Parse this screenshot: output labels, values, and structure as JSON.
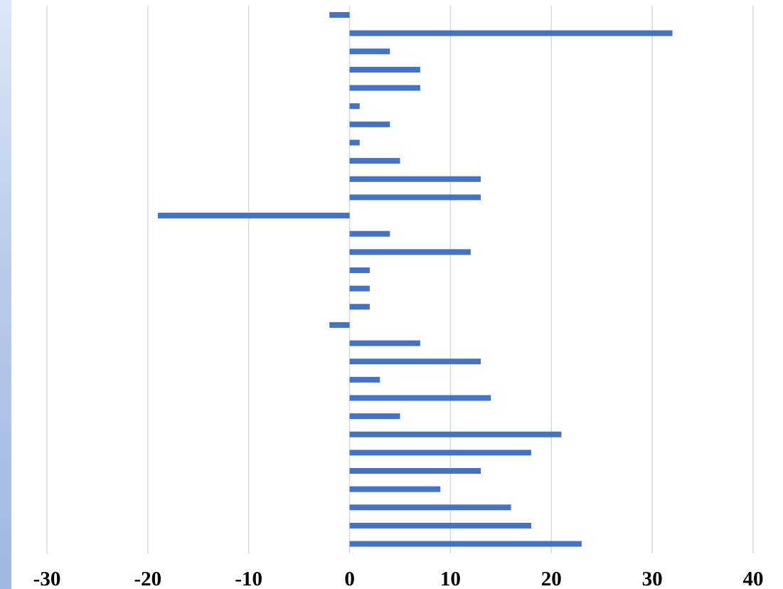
{
  "chart_data": {
    "type": "bar",
    "orientation": "horizontal",
    "title": "",
    "xlabel": "",
    "ylabel": "",
    "xlim": [
      -30,
      40
    ],
    "x_ticks": [
      -30,
      -20,
      -10,
      0,
      10,
      20,
      30,
      40
    ],
    "x_tick_labels": [
      "-30",
      "-20",
      "-10",
      "0",
      "10",
      "20",
      "30",
      "40"
    ],
    "grid": "vertical",
    "legend": "none",
    "values": [
      -2,
      32,
      4,
      7,
      7,
      1,
      4,
      1,
      5,
      13,
      13,
      -19,
      4,
      12,
      2,
      2,
      2,
      -2,
      7,
      13,
      3,
      14,
      5,
      21,
      18,
      13,
      9,
      16,
      18,
      23
    ]
  },
  "colors": {
    "bar": "#4472c4",
    "grid": "#d9d9d9",
    "tick_text": "#000000"
  }
}
